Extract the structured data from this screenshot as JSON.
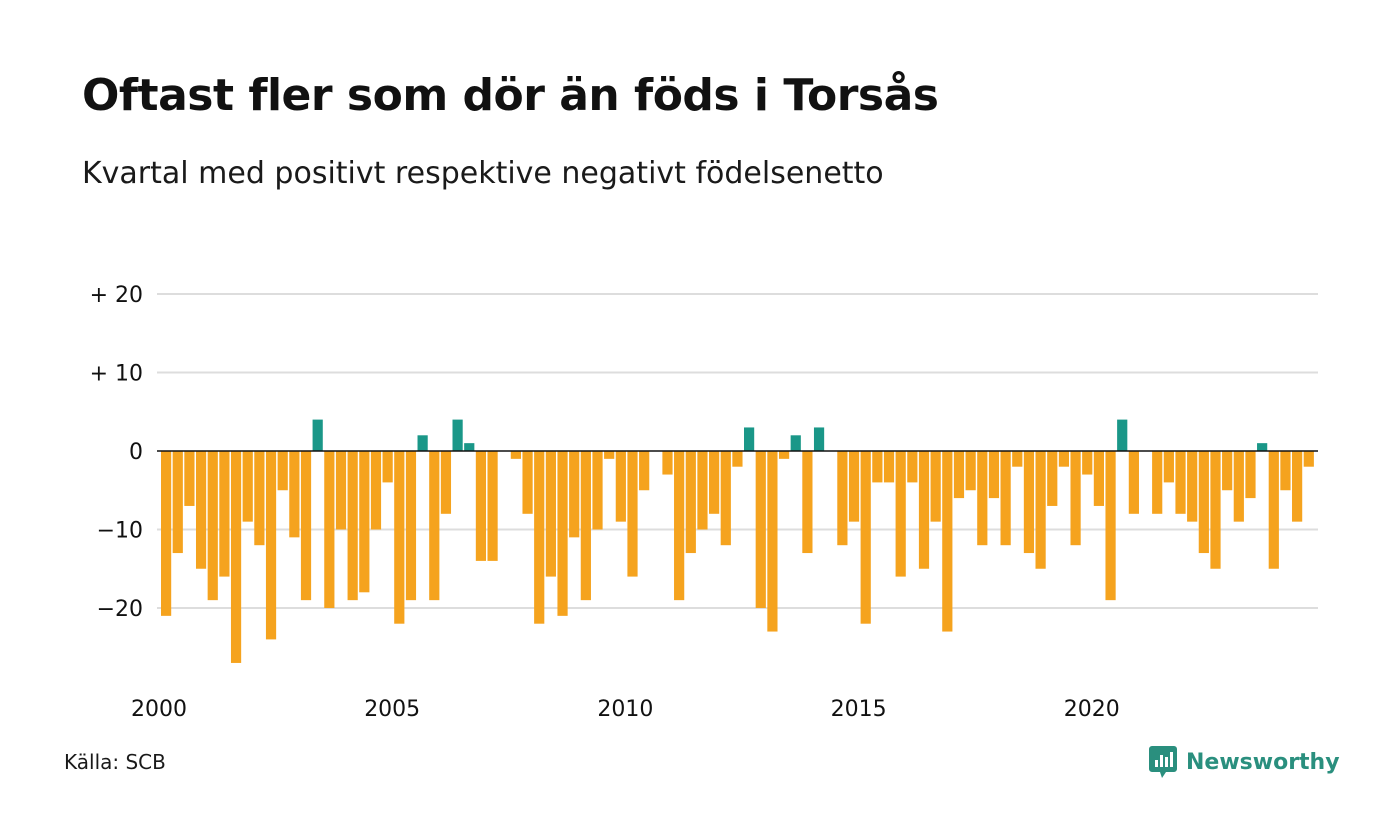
{
  "title": "Oftast fler som dör än föds i Torsås",
  "subtitle": "Kvartal med positivt respektive negativt födelsenetto",
  "source": "Källa: SCB",
  "brand": "Newsworthy",
  "colors": {
    "negative": "#F5A31E",
    "positive": "#1A9788",
    "grid": "#dddddd",
    "zero_line": "#111111",
    "brand": "#2A8F7E"
  },
  "chart_data": {
    "type": "bar",
    "title": "Oftast fler som dör än föds i Torsås",
    "subtitle": "Kvartal med positivt respektive negativt födelsenetto",
    "xlabel": "",
    "ylabel": "",
    "x_start": "2000",
    "x_step": "quarter",
    "x_ticks": [
      "2000",
      "2005",
      "2010",
      "2015",
      "2020"
    ],
    "y_ticks": [
      {
        "value": 20,
        "label": "+ 20"
      },
      {
        "value": 10,
        "label": "+ 10"
      },
      {
        "value": 0,
        "label": "0"
      },
      {
        "value": -10,
        "label": "−10"
      },
      {
        "value": -20,
        "label": "−20"
      }
    ],
    "ylim": [
      -28,
      22
    ],
    "grid": true,
    "values": [
      -21,
      -13,
      -7,
      -15,
      -19,
      -16,
      -27,
      -9,
      -12,
      -24,
      -5,
      -11,
      -19,
      4,
      -20,
      -10,
      -19,
      -18,
      -10,
      -4,
      -22,
      -19,
      2,
      -19,
      -8,
      4,
      1,
      -14,
      -14,
      0,
      -1,
      -8,
      -22,
      -16,
      -21,
      -11,
      -19,
      -10,
      -1,
      -9,
      -16,
      -5,
      0,
      -3,
      -19,
      -13,
      -10,
      -8,
      -12,
      -2,
      3,
      -20,
      -23,
      -1,
      2,
      -13,
      3,
      0,
      -12,
      -9,
      -22,
      -4,
      -4,
      -16,
      -4,
      -15,
      -9,
      -23,
      -6,
      -5,
      -12,
      -6,
      -12,
      -2,
      -13,
      -15,
      -7,
      -2,
      -12,
      -3,
      -7,
      -19,
      4,
      -8,
      0,
      -8,
      -4,
      -8,
      -9,
      -13,
      -15,
      -5,
      -9,
      -6,
      1,
      -15,
      -5,
      -9,
      -2
    ]
  }
}
